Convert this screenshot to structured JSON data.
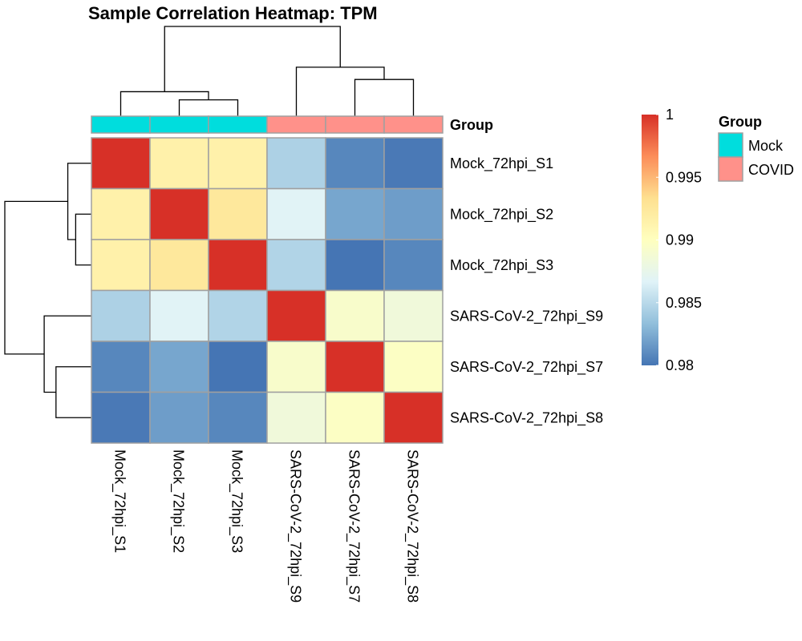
{
  "chart_data": {
    "type": "heatmap",
    "title": "Sample Correlation Heatmap: TPM",
    "rows": [
      "Mock_72hpi_S1",
      "Mock_72hpi_S2",
      "Mock_72hpi_S3",
      "SARS-CoV-2_72hpi_S9",
      "SARS-CoV-2_72hpi_S7",
      "SARS-CoV-2_72hpi_S8"
    ],
    "columns": [
      "Mock_72hpi_S1",
      "Mock_72hpi_S2",
      "Mock_72hpi_S3",
      "SARS-CoV-2_72hpi_S9",
      "SARS-CoV-2_72hpi_S7",
      "SARS-CoV-2_72hpi_S8"
    ],
    "values": [
      [
        1.0,
        0.9915,
        0.9915,
        0.9845,
        0.9808,
        0.9802
      ],
      [
        0.9915,
        1.0,
        0.9925,
        0.9868,
        0.9822,
        0.9818
      ],
      [
        0.9915,
        0.9925,
        1.0,
        0.9847,
        0.98,
        0.9808
      ],
      [
        0.9845,
        0.9868,
        0.9847,
        1.0,
        0.9893,
        0.9884
      ],
      [
        0.9808,
        0.9822,
        0.98,
        0.9893,
        1.0,
        0.9897
      ],
      [
        0.9802,
        0.9818,
        0.9808,
        0.9884,
        0.9897,
        1.0
      ]
    ],
    "annotation": {
      "title": "Group",
      "values": [
        "Mock",
        "Mock",
        "Mock",
        "COVID",
        "COVID",
        "COVID"
      ],
      "legend": [
        {
          "label": "Mock",
          "color": "#00DDDD"
        },
        {
          "label": "COVID",
          "color": "#FF918A"
        }
      ]
    },
    "colorbar": {
      "min": 0.98,
      "max": 1.0,
      "ticks": [
        "1",
        "0.995",
        "0.99",
        "0.985",
        "0.98"
      ],
      "tick_values": [
        1.0,
        0.995,
        0.99,
        0.985,
        0.98
      ],
      "colors": [
        "#4575B4",
        "#91BFDB",
        "#E0F3F8",
        "#FFFFBF",
        "#FEE090",
        "#FC8D59",
        "#D73027"
      ]
    },
    "dendrogram": {
      "leaf_order": [
        "Mock_72hpi_S1",
        "Mock_72hpi_S2",
        "Mock_72hpi_S3",
        "SARS-CoV-2_72hpi_S9",
        "SARS-CoV-2_72hpi_S7",
        "SARS-CoV-2_72hpi_S8"
      ],
      "merges": [
        {
          "left": 1,
          "right": 2,
          "height": 0.004
        },
        {
          "left": 0,
          "right": "c0",
          "height": 0.006
        },
        {
          "left": 4,
          "right": 5,
          "height": 0.009
        },
        {
          "left": 3,
          "right": "c2",
          "height": 0.012
        },
        {
          "left": "c1",
          "right": "c3",
          "height": 0.022
        }
      ]
    }
  }
}
